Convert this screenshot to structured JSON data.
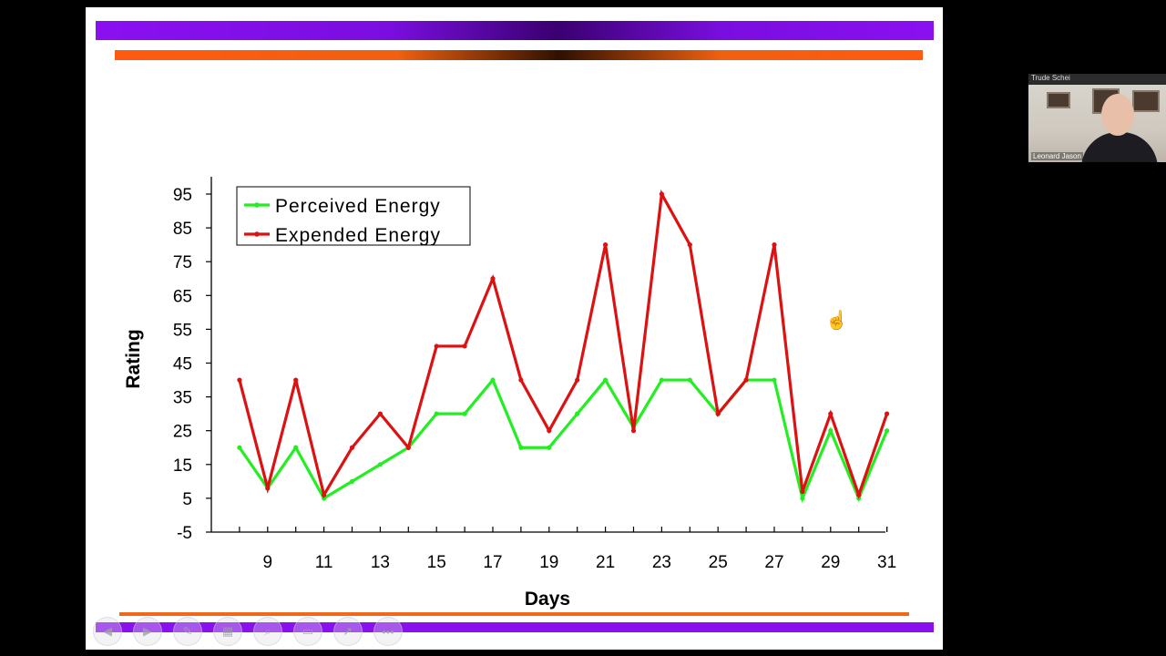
{
  "chart_data": {
    "type": "line",
    "title": "",
    "xlabel": "Days",
    "ylabel": "Rating",
    "x": [
      8,
      9,
      10,
      11,
      12,
      13,
      14,
      15,
      16,
      17,
      18,
      19,
      20,
      21,
      22,
      23,
      24,
      25,
      26,
      27,
      28,
      29,
      30,
      31
    ],
    "x_tick_labels": [
      "9",
      "11",
      "13",
      "15",
      "17",
      "19",
      "21",
      "23",
      "25",
      "27",
      "29",
      "31"
    ],
    "y_tick_labels": [
      "95",
      "85",
      "75",
      "65",
      "55",
      "45",
      "35",
      "25",
      "15",
      "5",
      "-5"
    ],
    "ylim": [
      -5,
      100
    ],
    "grid": false,
    "legend_position": "top-left",
    "series": [
      {
        "name": "Perceived Energy",
        "color": "#22ee22",
        "values": [
          20,
          8,
          20,
          5,
          10,
          15,
          20,
          30,
          30,
          40,
          20,
          20,
          30,
          40,
          26,
          40,
          40,
          30,
          40,
          40,
          5,
          25,
          5,
          25
        ]
      },
      {
        "name": "Expended Energy",
        "color": "#dd1111",
        "values": [
          40,
          8,
          40,
          6,
          20,
          30,
          20,
          50,
          50,
          70,
          40,
          25,
          40,
          80,
          25,
          95,
          80,
          30,
          40,
          80,
          7,
          30,
          6,
          30
        ]
      }
    ]
  },
  "webcam": {
    "top_name": "Trude Schei",
    "speaker_name": "Leonard Jason"
  },
  "toolbar_icons": [
    "prev-icon",
    "next-icon",
    "pen-icon",
    "slides-icon",
    "zoom-icon",
    "subtitles-icon",
    "pointer-icon",
    "more-icon"
  ]
}
